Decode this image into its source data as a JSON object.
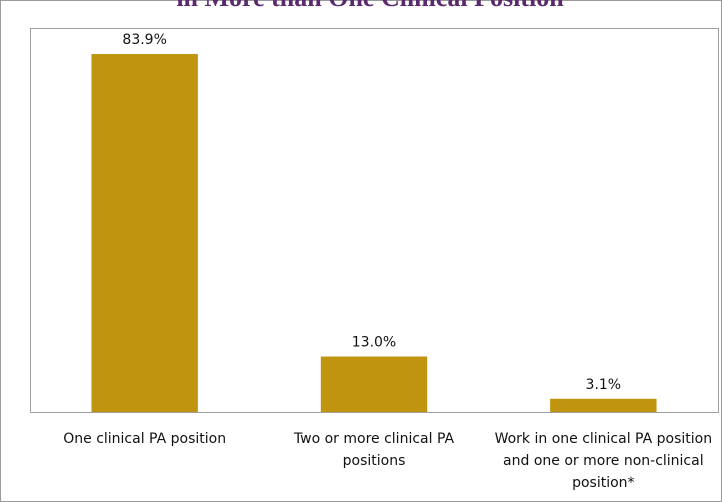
{
  "chart_data": {
    "type": "bar",
    "title": "in More than One Clinical Position",
    "categories": [
      "One clinical PA position",
      "Two or more clinical PA positions",
      "Work in one clinical PA position and one or more non-clinical position*"
    ],
    "values": [
      83.9,
      13.0,
      3.1
    ],
    "value_labels": [
      "83.9%",
      "13.0%",
      "3.1%"
    ],
    "color": "#c0940f",
    "ylim": [
      0,
      90
    ]
  }
}
